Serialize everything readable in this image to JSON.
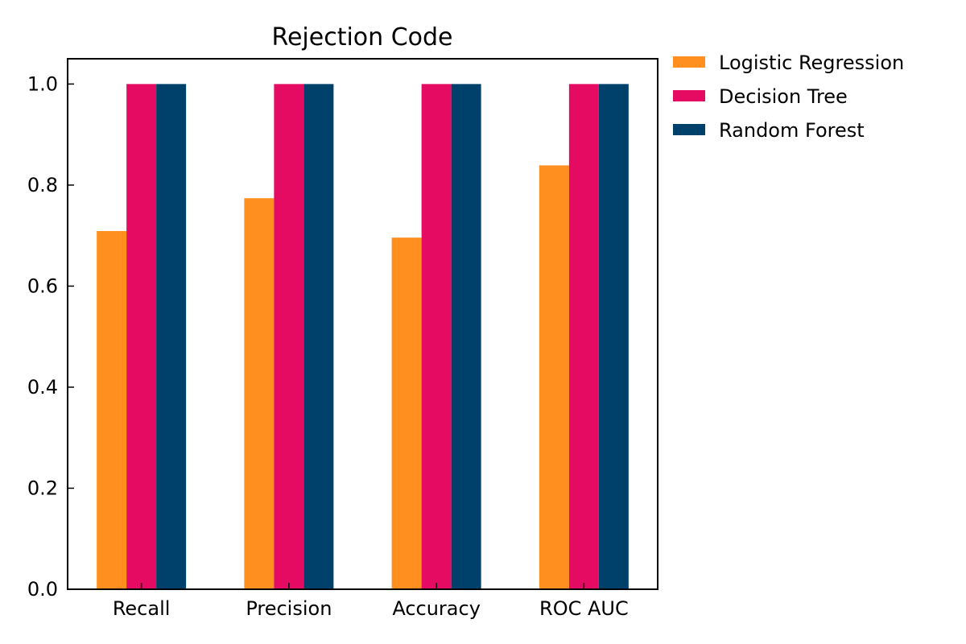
{
  "chart_data": {
    "type": "bar",
    "title": "Rejection Code",
    "xlabel": "",
    "ylabel": "",
    "categories": [
      "Recall",
      "Precision",
      "Accuracy",
      "ROC AUC"
    ],
    "ylim": [
      0,
      1.05
    ],
    "yticks": [
      "0.0",
      "0.2",
      "0.4",
      "0.6",
      "0.8",
      "1.0"
    ],
    "grid": false,
    "legend_position": "outside-top-right",
    "series": [
      {
        "name": "Logistic Regression",
        "color": "#FF8F1F",
        "values": [
          0.709,
          0.774,
          0.696,
          0.839
        ]
      },
      {
        "name": "Decision Tree",
        "color": "#E60B62",
        "values": [
          1.0,
          1.0,
          1.0,
          1.0
        ]
      },
      {
        "name": "Random Forest",
        "color": "#00416B",
        "values": [
          1.0,
          1.0,
          1.0,
          1.0
        ]
      }
    ]
  }
}
